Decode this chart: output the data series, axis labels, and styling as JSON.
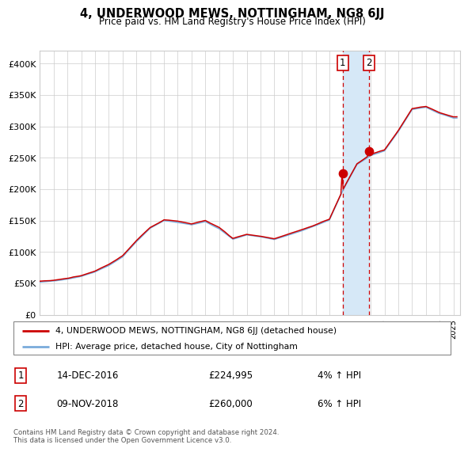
{
  "title": "4, UNDERWOOD MEWS, NOTTINGHAM, NG8 6JJ",
  "subtitle": "Price paid vs. HM Land Registry's House Price Index (HPI)",
  "ylim": [
    0,
    420000
  ],
  "xlim_start": 1995.0,
  "xlim_end": 2025.5,
  "sale1_date_num": 2016.958,
  "sale1_price": 224995,
  "sale2_date_num": 2018.86,
  "sale2_price": 260000,
  "sale1_date_str": "14-DEC-2016",
  "sale1_price_str": "£224,995",
  "sale1_hpi_str": "4% ↑ HPI",
  "sale2_date_str": "09-NOV-2018",
  "sale2_price_str": "£260,000",
  "sale2_hpi_str": "6% ↑ HPI",
  "red_line_color": "#cc0000",
  "blue_line_color": "#7aabdb",
  "dot_color": "#cc0000",
  "shade_color": "#d6e8f7",
  "dashed_line_color": "#cc0000",
  "grid_color": "#cccccc",
  "legend_label_red": "4, UNDERWOOD MEWS, NOTTINGHAM, NG8 6JJ (detached house)",
  "legend_label_blue": "HPI: Average price, detached house, City of Nottingham",
  "footer": "Contains HM Land Registry data © Crown copyright and database right 2024.\nThis data is licensed under the Open Government Licence v3.0.",
  "ytick_labels": [
    "£0",
    "£50K",
    "£100K",
    "£150K",
    "£200K",
    "£250K",
    "£300K",
    "£350K",
    "£400K"
  ],
  "ytick_values": [
    0,
    50000,
    100000,
    150000,
    200000,
    250000,
    300000,
    350000,
    400000
  ],
  "hpi_base_vals": {
    "1995": 52000,
    "1996": 54000,
    "1997": 57000,
    "1998": 62000,
    "1999": 69000,
    "2000": 79000,
    "2001": 93000,
    "2002": 117000,
    "2003": 138000,
    "2004": 150000,
    "2005": 147000,
    "2006": 143000,
    "2007": 149000,
    "2008": 138000,
    "2009": 121000,
    "2010": 128000,
    "2011": 125000,
    "2012": 121000,
    "2013": 128000,
    "2014": 135000,
    "2015": 143000,
    "2016": 152000,
    "2017": 200000,
    "2018": 240000,
    "2019": 255000,
    "2020": 262000,
    "2021": 293000,
    "2022": 328000,
    "2023": 332000,
    "2024": 322000,
    "2025": 315000
  }
}
